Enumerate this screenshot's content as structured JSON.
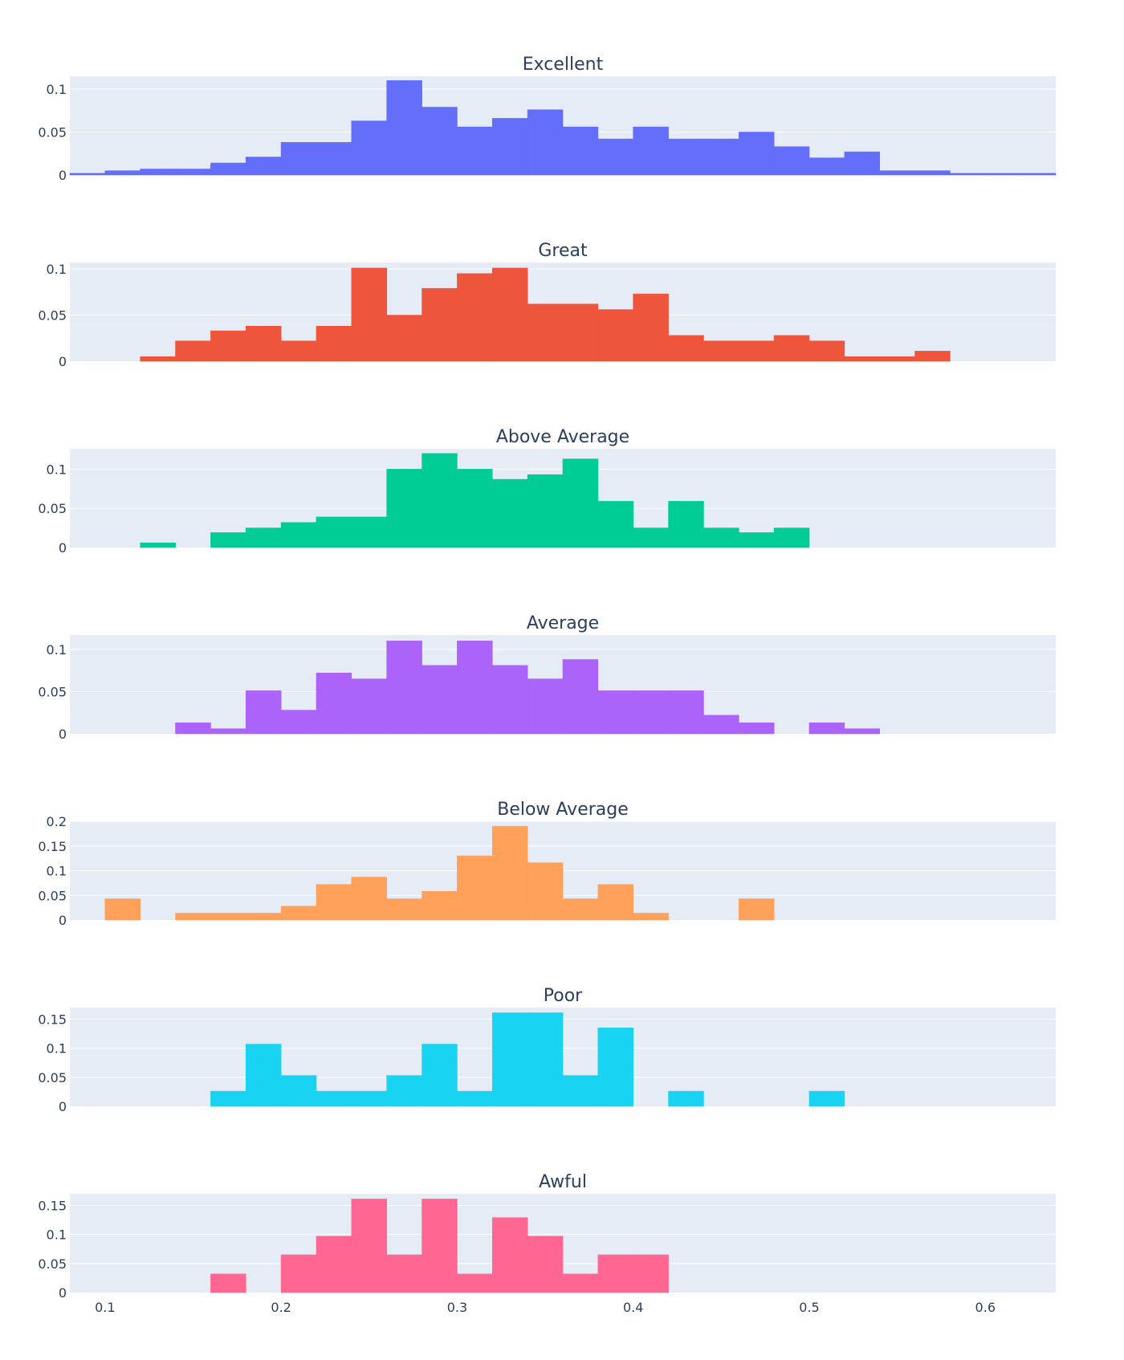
{
  "chart_data": {
    "type": "bar",
    "subtype": "histogram",
    "layout": "7 vertically stacked subplots sharing the x axis",
    "background_color": "#E5ECF6",
    "grid": true,
    "xlim": [
      0.08,
      0.64
    ],
    "x_ticks": [
      0.1,
      0.2,
      0.3,
      0.4,
      0.5,
      0.6
    ],
    "x_tick_labels": [
      "0.1",
      "0.2",
      "0.3",
      "0.4",
      "0.5",
      "0.6"
    ],
    "bin_start": 0.08,
    "bin_width": 0.02,
    "panels": [
      {
        "title": "Excellent",
        "color": "#636EFA",
        "ylim": [
          0,
          0.115
        ],
        "y_ticks": [
          0,
          0.05,
          0.1
        ],
        "y_tick_labels": [
          "0",
          "0.05",
          "0.1"
        ],
        "values": [
          0.002,
          0.005,
          0.007,
          0.007,
          0.014,
          0.021,
          0.038,
          0.038,
          0.063,
          0.11,
          0.079,
          0.056,
          0.066,
          0.076,
          0.056,
          0.042,
          0.056,
          0.042,
          0.042,
          0.05,
          0.033,
          0.02,
          0.027,
          0.005,
          0.005,
          0.002,
          0.002,
          0.002
        ]
      },
      {
        "title": "Great",
        "color": "#EF553B",
        "ylim": [
          0,
          0.107
        ],
        "y_ticks": [
          0,
          0.05,
          0.1
        ],
        "y_tick_labels": [
          "0",
          "0.05",
          "0.1"
        ],
        "values": [
          0,
          0,
          0.005,
          0.022,
          0.033,
          0.038,
          0.022,
          0.038,
          0.101,
          0.05,
          0.079,
          0.095,
          0.101,
          0.062,
          0.062,
          0.056,
          0.073,
          0.028,
          0.022,
          0.022,
          0.028,
          0.022,
          0.005,
          0.005,
          0.011,
          0,
          0,
          0
        ]
      },
      {
        "title": "Above Average",
        "color": "#00CC96",
        "ylim": [
          0,
          0.126
        ],
        "y_ticks": [
          0,
          0.05,
          0.1
        ],
        "y_tick_labels": [
          "0",
          "0.05",
          "0.1"
        ],
        "values": [
          0,
          0,
          0.006,
          0,
          0.019,
          0.025,
          0.032,
          0.039,
          0.039,
          0.1,
          0.12,
          0.1,
          0.087,
          0.093,
          0.113,
          0.059,
          0.025,
          0.059,
          0.025,
          0.019,
          0.025,
          0,
          0,
          0,
          0,
          0,
          0,
          0
        ]
      },
      {
        "title": "Average",
        "color": "#AB63FA",
        "ylim": [
          0,
          0.117
        ],
        "y_ticks": [
          0,
          0.05,
          0.1
        ],
        "y_tick_labels": [
          "0",
          "0.05",
          "0.1"
        ],
        "values": [
          0,
          0,
          0,
          0.013,
          0.006,
          0.051,
          0.028,
          0.072,
          0.065,
          0.11,
          0.081,
          0.11,
          0.081,
          0.065,
          0.088,
          0.051,
          0.051,
          0.051,
          0.022,
          0.013,
          0,
          0.013,
          0.006,
          0,
          0,
          0,
          0,
          0
        ]
      },
      {
        "title": "Below Average",
        "color": "#FFA15A",
        "ylim": [
          0,
          0.2
        ],
        "y_ticks": [
          0,
          0.05,
          0.1,
          0.15,
          0.2
        ],
        "y_tick_labels": [
          "0",
          "0.05",
          "0.1",
          "0.15",
          "0.2"
        ],
        "values": [
          0,
          0.043,
          0,
          0.014,
          0.014,
          0.014,
          0.028,
          0.072,
          0.087,
          0.043,
          0.058,
          0.13,
          0.19,
          0.116,
          0.043,
          0.072,
          0.014,
          0,
          0,
          0.043,
          0,
          0,
          0,
          0,
          0,
          0,
          0,
          0
        ]
      },
      {
        "title": "Poor",
        "color": "#19D3F3",
        "ylim": [
          0,
          0.17
        ],
        "y_ticks": [
          0,
          0.05,
          0.1,
          0.15
        ],
        "y_tick_labels": [
          "0",
          "0.05",
          "0.1",
          "0.15"
        ],
        "values": [
          0,
          0,
          0,
          0,
          0.026,
          0.107,
          0.053,
          0.026,
          0.026,
          0.053,
          0.107,
          0.026,
          0.161,
          0.161,
          0.053,
          0.135,
          0,
          0.026,
          0,
          0,
          0,
          0.026,
          0,
          0,
          0,
          0,
          0,
          0
        ]
      },
      {
        "title": "Awful",
        "color": "#FF6692",
        "ylim": [
          0,
          0.17
        ],
        "y_ticks": [
          0,
          0.05,
          0.1,
          0.15
        ],
        "y_tick_labels": [
          "0",
          "0.05",
          "0.1",
          "0.15"
        ],
        "values": [
          0,
          0,
          0,
          0,
          0.032,
          0,
          0.065,
          0.097,
          0.161,
          0.065,
          0.161,
          0.032,
          0.129,
          0.097,
          0.032,
          0.065,
          0.065,
          0,
          0,
          0,
          0,
          0,
          0,
          0,
          0,
          0,
          0,
          0
        ]
      }
    ]
  }
}
